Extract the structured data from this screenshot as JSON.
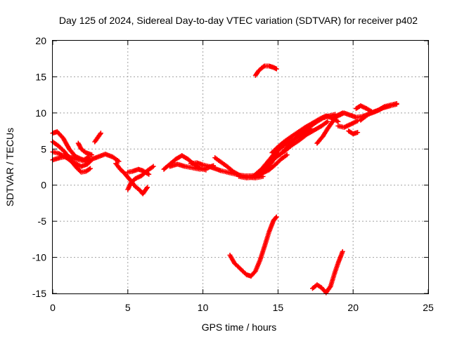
{
  "chart_data": {
    "type": "scatter",
    "title": "Day 125 of 2024, Sidereal Day-to-day VTEC variation (SDTVAR) for receiver p402",
    "xlabel": "GPS time / hours",
    "ylabel": "SDTVAR / TECUs",
    "xlim": [
      0,
      25
    ],
    "ylim": [
      -15,
      20
    ],
    "xticks": [
      "0",
      "5",
      "10",
      "15",
      "20",
      "25"
    ],
    "yticks": [
      "-15",
      "-10",
      "-5",
      "0",
      "5",
      "10",
      "15",
      "20"
    ],
    "grid": true,
    "marker": "+",
    "series_color": "#ff0000",
    "tracks": [
      {
        "x": [
          0.0,
          0.3,
          0.7,
          1.1,
          1.5,
          1.9,
          2.3,
          2.5
        ],
        "y": [
          7.2,
          7.4,
          6.5,
          5.0,
          4.0,
          3.6,
          3.3,
          3.5
        ]
      },
      {
        "x": [
          0.0,
          0.4,
          0.8,
          1.2,
          1.6,
          1.9,
          2.2,
          2.5
        ],
        "y": [
          6.0,
          5.4,
          4.6,
          3.4,
          2.4,
          1.8,
          1.9,
          2.3
        ]
      },
      {
        "x": [
          0.0,
          0.4,
          0.9,
          1.4,
          1.9,
          2.3,
          2.5
        ],
        "y": [
          4.6,
          4.4,
          3.8,
          3.1,
          2.6,
          2.9,
          3.3
        ]
      },
      {
        "x": [
          0.0,
          0.5,
          1.0,
          1.5,
          2.0,
          2.4
        ],
        "y": [
          3.5,
          3.8,
          4.0,
          3.6,
          3.4,
          3.9
        ]
      },
      {
        "x": [
          1.7,
          1.9,
          2.2,
          2.6
        ],
        "y": [
          5.8,
          5.0,
          4.5,
          4.2
        ]
      },
      {
        "x": [
          2.8,
          3.0,
          3.2
        ],
        "y": [
          6.0,
          6.6,
          7.2
        ]
      },
      {
        "x": [
          2.6,
          3.0,
          3.5,
          4.0,
          4.4
        ],
        "y": [
          3.6,
          3.9,
          4.3,
          3.9,
          3.3
        ]
      },
      {
        "x": [
          4.2,
          4.5,
          4.8,
          5.0,
          5.2,
          5.5,
          5.8,
          6.0,
          6.3
        ],
        "y": [
          3.0,
          2.2,
          1.6,
          1.1,
          0.6,
          -0.2,
          -0.7,
          -1.2,
          -0.3
        ]
      },
      {
        "x": [
          5.0,
          5.3,
          5.7,
          6.0,
          6.4
        ],
        "y": [
          1.8,
          1.9,
          2.2,
          2.0,
          1.5
        ]
      },
      {
        "x": [
          5.0,
          5.2,
          5.5,
          5.9,
          6.3,
          6.7
        ],
        "y": [
          -0.6,
          0.3,
          0.9,
          1.3,
          2.0,
          2.6
        ]
      },
      {
        "x": [
          7.4,
          7.8,
          8.2,
          8.6,
          9.0,
          9.4,
          9.8,
          10.2
        ],
        "y": [
          2.2,
          2.9,
          3.6,
          4.1,
          3.6,
          2.9,
          2.3,
          2.1
        ]
      },
      {
        "x": [
          7.8,
          8.3,
          8.8,
          9.3,
          9.8,
          10.3,
          10.7
        ],
        "y": [
          2.6,
          2.9,
          2.6,
          2.4,
          2.2,
          2.4,
          2.7
        ]
      },
      {
        "x": [
          9.2,
          9.6,
          10.0,
          10.4,
          10.8,
          11.2,
          11.6,
          12.0,
          12.4,
          12.8,
          13.2,
          13.6,
          14.0,
          14.4,
          14.8,
          15.2,
          15.6
        ],
        "y": [
          3.0,
          3.1,
          2.8,
          2.6,
          2.3,
          2.0,
          1.8,
          1.6,
          1.4,
          1.3,
          1.3,
          1.4,
          1.7,
          2.1,
          2.8,
          3.6,
          4.2
        ]
      },
      {
        "x": [
          10.8,
          11.2,
          11.6,
          12.0,
          12.5,
          13.0,
          13.5,
          14.0
        ],
        "y": [
          3.8,
          3.2,
          2.6,
          1.9,
          1.3,
          1.1,
          1.0,
          1.2
        ]
      },
      {
        "x": [
          12.4,
          12.9,
          13.4,
          13.8,
          14.2,
          14.6,
          15.0
        ],
        "y": [
          1.2,
          1.0,
          1.1,
          1.5,
          2.2,
          3.2,
          4.5
        ]
      },
      {
        "x": [
          13.5,
          13.9,
          14.3,
          14.7,
          15.1,
          15.5,
          15.9,
          16.3,
          16.8,
          17.2
        ],
        "y": [
          1.5,
          2.2,
          3.2,
          4.2,
          5.0,
          5.7,
          6.2,
          6.6,
          7.2,
          7.8
        ]
      },
      {
        "x": [
          14.6,
          15.0,
          15.4,
          15.8,
          16.3,
          16.8,
          17.3,
          17.8,
          18.2,
          18.6,
          19.0
        ],
        "y": [
          4.5,
          5.3,
          6.0,
          6.6,
          7.3,
          8.0,
          8.6,
          9.2,
          9.6,
          9.3,
          8.8
        ]
      },
      {
        "x": [
          14.7,
          15.1,
          15.5,
          15.9,
          16.4,
          16.9,
          17.4,
          17.9,
          18.3
        ],
        "y": [
          3.6,
          4.2,
          4.8,
          5.5,
          6.2,
          7.0,
          7.6,
          8.2,
          8.8
        ]
      },
      {
        "x": [
          15.3,
          15.7,
          16.2,
          16.7,
          17.2,
          17.6,
          18.0,
          18.4,
          18.8
        ],
        "y": [
          4.6,
          5.4,
          6.6,
          7.6,
          8.2,
          8.8,
          9.3,
          9.6,
          9.8
        ]
      },
      {
        "x": [
          17.6,
          18.0,
          18.3,
          18.6,
          18.9,
          19.3
        ],
        "y": [
          5.8,
          6.8,
          7.8,
          8.7,
          9.6,
          10.0
        ]
      },
      {
        "x": [
          18.6,
          19.0,
          19.4,
          19.8,
          20.2,
          20.6,
          21.0
        ],
        "y": [
          9.3,
          9.6,
          10.0,
          9.7,
          9.4,
          9.5,
          9.8
        ]
      },
      {
        "x": [
          19.0,
          19.4,
          19.8,
          20.3
        ],
        "y": [
          8.2,
          8.0,
          8.4,
          8.9
        ]
      },
      {
        "x": [
          19.7,
          20.0,
          20.3
        ],
        "y": [
          7.5,
          7.1,
          7.3
        ]
      },
      {
        "x": [
          20.2,
          20.5,
          20.9,
          21.3,
          21.7,
          22.1,
          22.5,
          22.9
        ],
        "y": [
          10.6,
          11.0,
          10.6,
          10.1,
          10.4,
          10.9,
          11.1,
          11.3
        ]
      },
      {
        "x": [
          20.5,
          21.0,
          21.5,
          22.0,
          22.5,
          22.9
        ],
        "y": [
          9.0,
          9.8,
          10.2,
          10.7,
          11.0,
          11.2
        ]
      },
      {
        "x": [
          13.5,
          13.7,
          13.9,
          14.1,
          14.4,
          14.7,
          14.9
        ],
        "y": [
          15.2,
          15.8,
          16.2,
          16.5,
          16.5,
          16.3,
          16.1
        ]
      },
      {
        "x": [
          11.8,
          12.1,
          12.5,
          12.9,
          13.2,
          13.5,
          13.8,
          14.1,
          14.4,
          14.7,
          14.9
        ],
        "y": [
          -9.7,
          -10.8,
          -11.6,
          -12.4,
          -12.6,
          -11.9,
          -10.4,
          -8.5,
          -6.5,
          -4.9,
          -4.4
        ]
      },
      {
        "x": [
          17.3,
          17.6,
          17.9,
          18.2,
          18.5,
          18.8,
          19.0,
          19.3
        ],
        "y": [
          -14.3,
          -13.8,
          -14.2,
          -14.9,
          -14.0,
          -12.0,
          -10.8,
          -9.2
        ]
      }
    ]
  }
}
